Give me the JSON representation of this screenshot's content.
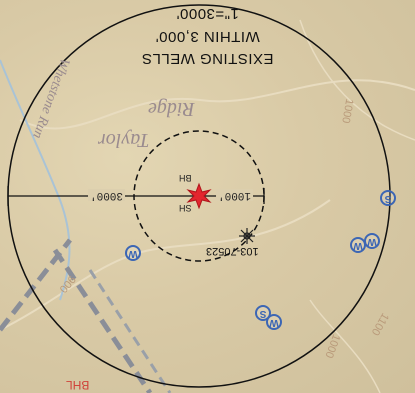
{
  "title": {
    "line1": "EXISTING WELLS",
    "line2": "WITHIN 3,000'",
    "line3": "1\"=3000'"
  },
  "labels": {
    "ridge1": "Ridge",
    "ridge2": "Taylor",
    "stream": "Whetstone Run",
    "well_id": "103-70523",
    "dist_left": "3000'",
    "dist_right": "1000'",
    "bh": "BH",
    "sh": "SH",
    "bhl": "BHL",
    "contour_1000": "1000",
    "contour_1100": "1100",
    "contour_1000b": "1000",
    "contour_900": "900"
  },
  "wells": [
    "S",
    "W",
    "W",
    "W",
    "W",
    "S"
  ],
  "colors": {
    "well_symbol": "#3c66b4",
    "center_marker": "#e3262e",
    "road": "#8a8e98",
    "circle": "#111111"
  }
}
